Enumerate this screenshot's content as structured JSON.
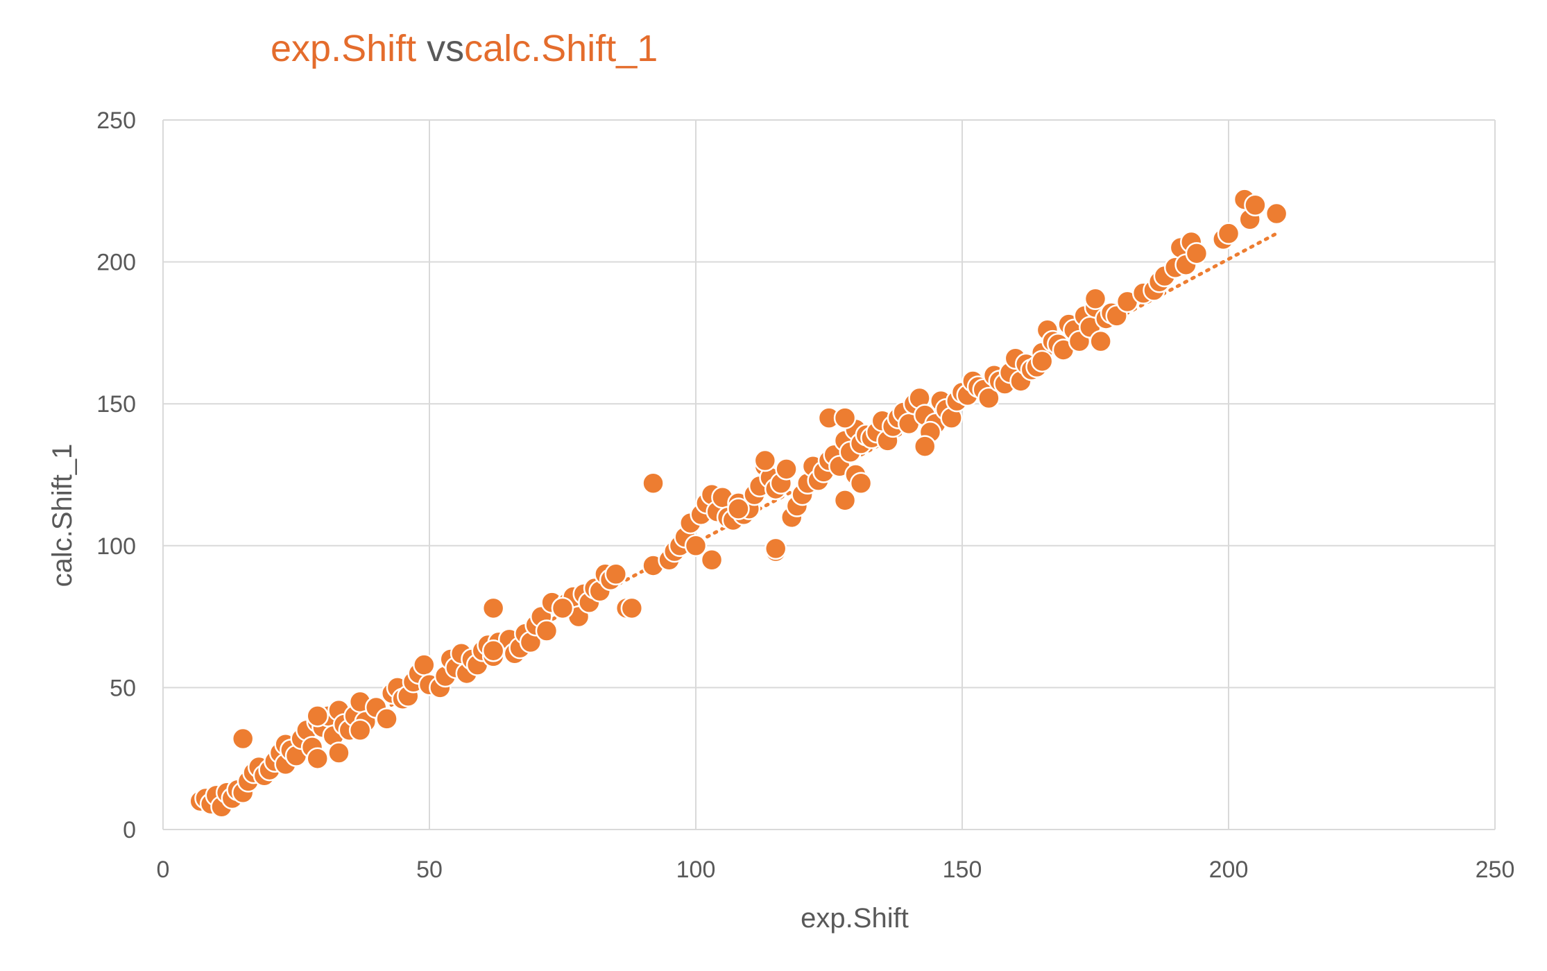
{
  "chart_data": {
    "type": "scatter",
    "title_parts": [
      {
        "text": "exp.Shift ",
        "color": "#E46C2C"
      },
      {
        "text": "vs",
        "color": "#595959"
      },
      {
        "text": "calc.Shift_1",
        "color": "#E46C2C"
      }
    ],
    "xlabel": "exp.Shift",
    "ylabel": "calc.Shift_1",
    "xlim": [
      0,
      250
    ],
    "ylim": [
      0,
      250
    ],
    "xticks": [
      "0",
      "50",
      "100",
      "150",
      "200",
      "250"
    ],
    "yticks": [
      "0",
      "50",
      "100",
      "150",
      "200",
      "250"
    ],
    "grid": true,
    "legend": "none",
    "trendline": {
      "style": "dotted",
      "x": [
        7,
        209
      ],
      "y": [
        8,
        210
      ]
    },
    "colors": {
      "marker": "#ED7D31",
      "marker_edge": "#FFFFFF",
      "trend": "#ED7D31",
      "grid": "#D9D9D9",
      "text": "#595959"
    },
    "series": [
      {
        "x": [
          7,
          8,
          9,
          10,
          11,
          12,
          13,
          14,
          15,
          16,
          17,
          18,
          19,
          20,
          21,
          22,
          23,
          23,
          24,
          25,
          26,
          27,
          28,
          29,
          29,
          30,
          31,
          32,
          33,
          33,
          34,
          35,
          36,
          37,
          38,
          40,
          42,
          43,
          44,
          45,
          46,
          47,
          48,
          49,
          50,
          52,
          53,
          54,
          55,
          56,
          57,
          58,
          59,
          60,
          61,
          62,
          63,
          65,
          66,
          67,
          68,
          69,
          70,
          71,
          72,
          73,
          75,
          76,
          77,
          78,
          79,
          80,
          81,
          82,
          83,
          84,
          85,
          87,
          92,
          92,
          95,
          96,
          97,
          98,
          99,
          100,
          101,
          102,
          103,
          104,
          105,
          106,
          107,
          108,
          109,
          110,
          111,
          112,
          113,
          114,
          115,
          116,
          117,
          118,
          119,
          120,
          121,
          122,
          123,
          124,
          125,
          126,
          127,
          128,
          129,
          130,
          131,
          132,
          133,
          134,
          135,
          136,
          137,
          138,
          139,
          140,
          141,
          142,
          143,
          144,
          145,
          146,
          147,
          148,
          149,
          150,
          151,
          152,
          153,
          154,
          155,
          156,
          157,
          158,
          159,
          160,
          161,
          162,
          163,
          164,
          165,
          166,
          167,
          168,
          169,
          170,
          171,
          172,
          173,
          174,
          175,
          176,
          177,
          178,
          179,
          181,
          184,
          186,
          187,
          188,
          190,
          191,
          192,
          193,
          194,
          199,
          200,
          203,
          204,
          205,
          209,
          15,
          29,
          37,
          62,
          75,
          113,
          115,
          125,
          128,
          130,
          144,
          175,
          165,
          62,
          88,
          103,
          108,
          115,
          128,
          131,
          143
        ],
        "y": [
          10,
          11,
          9,
          12,
          8,
          13,
          11,
          14,
          13,
          17,
          20,
          22,
          19,
          21,
          24,
          27,
          30,
          23,
          28,
          26,
          32,
          35,
          29,
          38,
          25,
          36,
          40,
          33,
          42,
          27,
          37,
          35,
          40,
          45,
          38,
          43,
          39,
          48,
          50,
          46,
          47,
          52,
          55,
          58,
          51,
          50,
          54,
          60,
          57,
          62,
          55,
          60,
          58,
          63,
          65,
          61,
          66,
          67,
          62,
          64,
          69,
          66,
          72,
          75,
          70,
          80,
          78,
          80,
          82,
          75,
          83,
          80,
          85,
          84,
          90,
          88,
          90,
          78,
          93,
          122,
          95,
          98,
          100,
          103,
          108,
          100,
          111,
          115,
          118,
          112,
          117,
          110,
          109,
          115,
          111,
          113,
          118,
          121,
          128,
          124,
          120,
          122,
          127,
          110,
          114,
          118,
          122,
          128,
          123,
          126,
          130,
          132,
          128,
          137,
          133,
          141,
          136,
          139,
          138,
          140,
          144,
          137,
          142,
          145,
          147,
          143,
          150,
          152,
          146,
          140,
          143,
          151,
          148,
          145,
          151,
          154,
          153,
          158,
          156,
          155,
          152,
          160,
          158,
          157,
          161,
          166,
          158,
          164,
          162,
          163,
          168,
          176,
          172,
          171,
          169,
          178,
          176,
          172,
          181,
          177,
          184,
          172,
          180,
          182,
          181,
          186,
          189,
          190,
          193,
          195,
          198,
          205,
          199,
          207,
          203,
          208,
          210,
          222,
          215,
          220,
          217,
          32,
          40,
          35,
          63,
          78,
          130,
          98,
          145,
          145,
          125,
          140,
          187,
          165,
          78,
          78,
          95,
          113,
          99,
          116,
          122,
          135
        ]
      }
    ]
  }
}
